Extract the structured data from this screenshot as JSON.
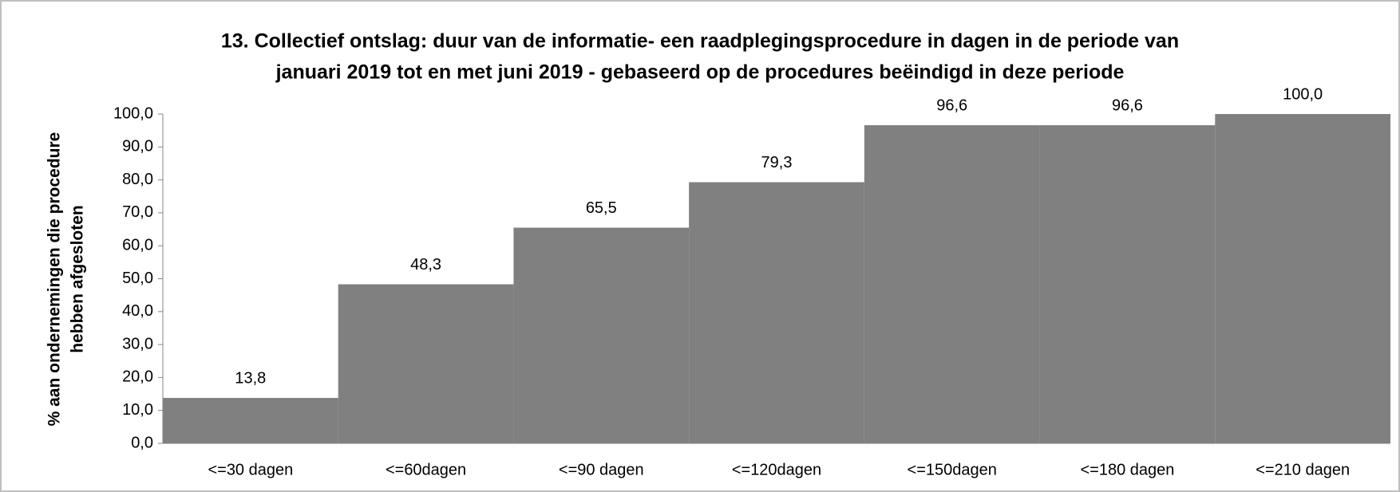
{
  "chart_data": {
    "type": "bar",
    "title": [
      "13. Collectief ontslag: duur van de informatie- een raadplegingsprocedure in dagen in de periode van",
      "januari 2019 tot en met juni 2019 - gebaseerd op de procedures beëindigd in deze periode"
    ],
    "y_label": [
      "% aan ondernemingen die procedure",
      "hebben afgesloten"
    ],
    "categories": [
      "<=30 dagen",
      "<=60dagen",
      "<=90 dagen",
      "<=120dagen",
      "<=150dagen",
      "<=180 dagen",
      "<=210 dagen"
    ],
    "values": [
      13.8,
      48.3,
      65.5,
      79.3,
      96.6,
      96.6,
      100.0
    ],
    "value_labels": [
      "13,8",
      "48,3",
      "65,5",
      "79,3",
      "96,6",
      "96,6",
      "100,0"
    ],
    "color": "#808080",
    "ylim": [
      0,
      100
    ],
    "yticks": [
      {
        "value": 0,
        "label": "0,0"
      },
      {
        "value": 10,
        "label": "10,0"
      },
      {
        "value": 20,
        "label": "20,0"
      },
      {
        "value": 30,
        "label": "30,0"
      },
      {
        "value": 40,
        "label": "40,0"
      },
      {
        "value": 50,
        "label": "50,0"
      },
      {
        "value": 60,
        "label": "60,0"
      },
      {
        "value": 70,
        "label": "70,0"
      },
      {
        "value": 80,
        "label": "80,0"
      },
      {
        "value": 90,
        "label": "90,0"
      },
      {
        "value": 100,
        "label": "100,0"
      }
    ],
    "grid": false
  }
}
